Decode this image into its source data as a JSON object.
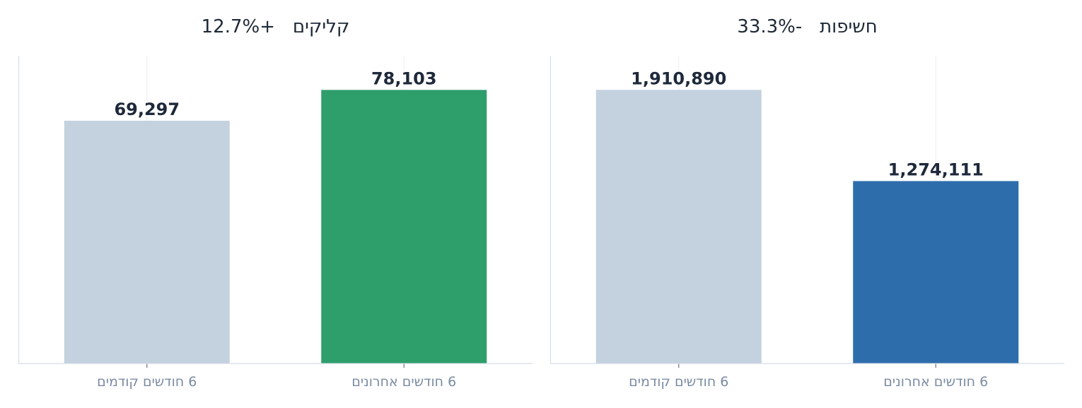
{
  "chart_data": [
    {
      "type": "bar",
      "title": "קליקים   +12.7%",
      "categories": [
        "6 חודשים קודמים",
        "6 חודשים אחרונים"
      ],
      "values": [
        69297,
        78103
      ],
      "value_labels": [
        "69,297",
        "78,103"
      ],
      "colors": [
        "#c4d1de",
        "#2e9e6b"
      ],
      "ylim": [
        0,
        87850
      ],
      "grid": "vertical"
    },
    {
      "type": "bar",
      "title": "חשיפות   -33.3%",
      "categories": [
        "6 חודשים קודמים",
        "6 חודשים אחרונים"
      ],
      "values": [
        1910890,
        1274111
      ],
      "value_labels": [
        "1,910,890",
        "1,274,111"
      ],
      "colors": [
        "#c4d1de",
        "#2e6dac"
      ],
      "ylim": [
        0,
        2149200
      ],
      "grid": "vertical"
    }
  ]
}
